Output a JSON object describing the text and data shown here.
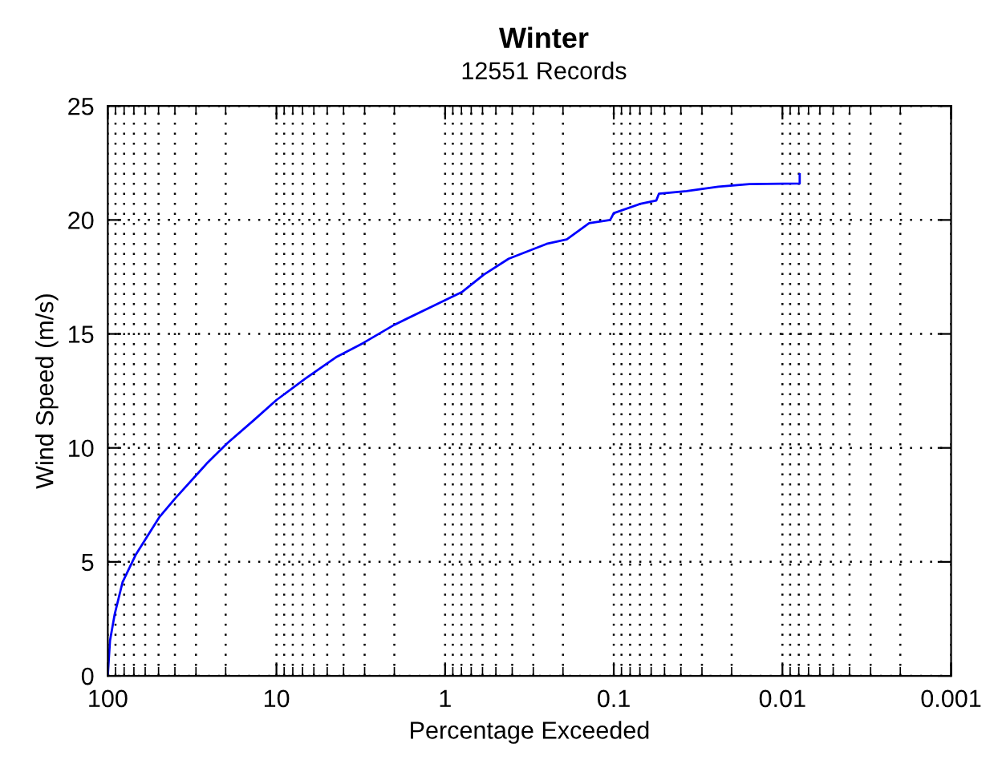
{
  "chart_data": {
    "type": "line",
    "title": "Winter",
    "subtitle": "12551 Records",
    "xlabel": "Percentage Exceeded",
    "ylabel": "Wind Speed (m/s)",
    "log": "x",
    "grid": true,
    "line_style": "solid",
    "marker": "none",
    "xlim": [
      100,
      0.001
    ],
    "xticks": [
      100,
      10,
      1,
      0.1,
      0.01,
      0.001
    ],
    "ylim": [
      0,
      25
    ],
    "yticks": [
      0,
      5,
      10,
      15,
      20,
      25
    ],
    "series": [
      {
        "color": "#0000ff",
        "x": [
          100,
          97,
          91,
          81.8,
          68.4,
          49.6,
          40,
          26,
          19.6,
          13.7,
          10,
          6.7,
          4.38,
          3.06,
          2.0,
          1.2,
          0.79,
          0.59,
          0.42,
          0.25,
          0.19,
          0.14,
          0.105,
          0.1,
          0.07,
          0.056,
          0.054,
          0.037,
          0.024,
          0.0157,
          0.0079,
          0.0079
        ],
        "values": [
          0,
          1.55,
          2.7,
          4.1,
          5.3,
          6.95,
          7.77,
          9.3,
          10.2,
          11.2,
          12.1,
          13.05,
          14.0,
          14.6,
          15.4,
          16.2,
          16.85,
          17.6,
          18.3,
          18.95,
          19.15,
          19.86,
          20.0,
          20.3,
          20.7,
          20.85,
          21.15,
          21.27,
          21.46,
          21.57,
          21.6,
          22.0
        ]
      }
    ]
  }
}
